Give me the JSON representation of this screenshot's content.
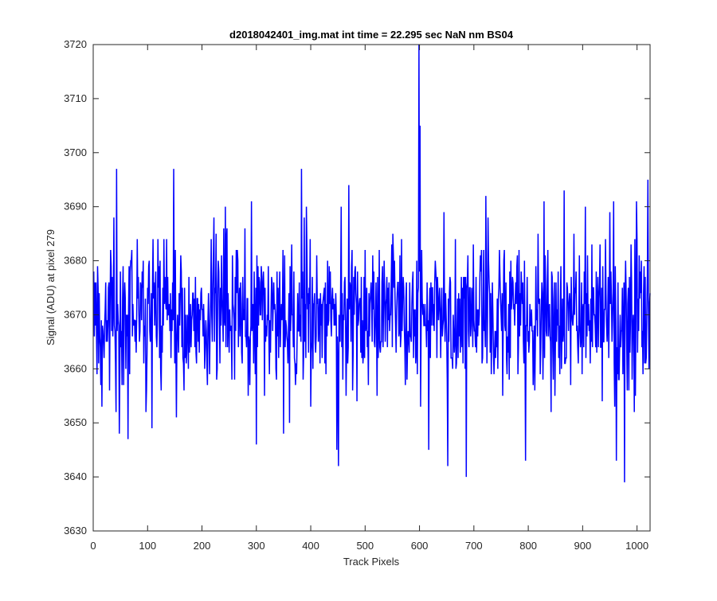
{
  "chart_data": {
    "type": "line",
    "title": "d2018042401_img.mat int time = 22.295 sec  NaN nm BS04",
    "xlabel": "Track Pixels",
    "ylabel": "Signal (ADU) at pixel 279",
    "xlim": [
      0,
      1024
    ],
    "ylim": [
      3630,
      3720
    ],
    "x_ticks": [
      0,
      100,
      200,
      300,
      400,
      500,
      600,
      700,
      800,
      900,
      1000
    ],
    "y_ticks": [
      3630,
      3640,
      3650,
      3660,
      3670,
      3680,
      3690,
      3700,
      3710,
      3720
    ],
    "grid": false,
    "legend": "none",
    "series": [
      {
        "color": "#0000ff",
        "x_start": 1,
        "x_step": 1,
        "count": 1024,
        "baseline": 3670,
        "noise_sd": 7,
        "notable_points": [
          {
            "x": 5,
            "y": 3676
          },
          {
            "x": 16,
            "y": 3653
          },
          {
            "x": 38,
            "y": 3688
          },
          {
            "x": 43,
            "y": 3697
          },
          {
            "x": 48,
            "y": 3648
          },
          {
            "x": 56,
            "y": 3657
          },
          {
            "x": 148,
            "y": 3697
          },
          {
            "x": 153,
            "y": 3651
          },
          {
            "x": 222,
            "y": 3688
          },
          {
            "x": 243,
            "y": 3690
          },
          {
            "x": 300,
            "y": 3646
          },
          {
            "x": 350,
            "y": 3648
          },
          {
            "x": 383,
            "y": 3697
          },
          {
            "x": 392,
            "y": 3690
          },
          {
            "x": 448,
            "y": 3645
          },
          {
            "x": 451,
            "y": 3642
          },
          {
            "x": 470,
            "y": 3694
          },
          {
            "x": 599,
            "y": 3720
          },
          {
            "x": 601,
            "y": 3705
          },
          {
            "x": 617,
            "y": 3645
          },
          {
            "x": 645,
            "y": 3689
          },
          {
            "x": 652,
            "y": 3642
          },
          {
            "x": 686,
            "y": 3640
          },
          {
            "x": 722,
            "y": 3692
          },
          {
            "x": 795,
            "y": 3643
          },
          {
            "x": 866,
            "y": 3693
          },
          {
            "x": 932,
            "y": 3683
          },
          {
            "x": 936,
            "y": 3654
          },
          {
            "x": 962,
            "y": 3643
          },
          {
            "x": 977,
            "y": 3639
          },
          {
            "x": 1020,
            "y": 3695
          },
          {
            "x": 1022,
            "y": 3660
          }
        ]
      }
    ]
  }
}
